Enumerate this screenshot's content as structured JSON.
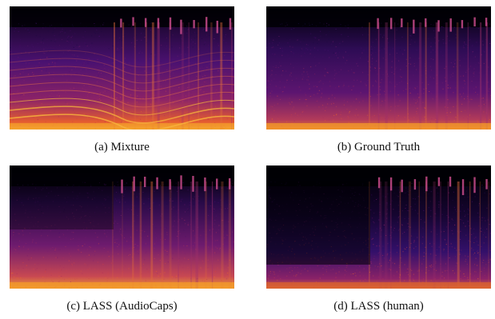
{
  "figure": {
    "panels": [
      {
        "caption": "(a) Mixture",
        "content": "spectrogram"
      },
      {
        "caption": "(b) Ground Truth",
        "content": "spectrogram"
      },
      {
        "caption": "(c) LASS (AudioCaps)",
        "content": "spectrogram"
      },
      {
        "caption": "(d) LASS (human)",
        "content": "spectrogram"
      }
    ],
    "colormap": [
      "#000004",
      "#1b0c41",
      "#4a0c6b",
      "#781c6d",
      "#a52c60",
      "#cf4446",
      "#ed6925",
      "#fb9b06",
      "#f7d13d",
      "#fcffa4"
    ]
  }
}
